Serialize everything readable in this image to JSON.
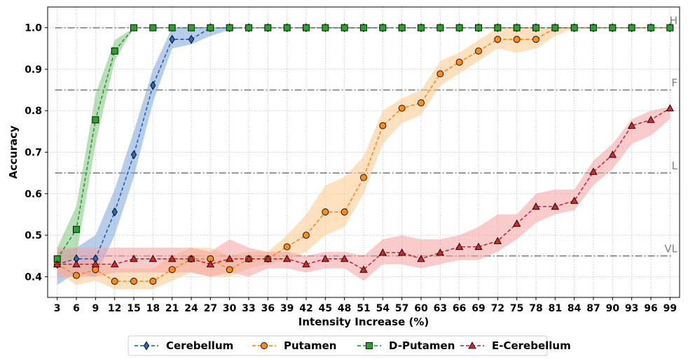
{
  "chart_data": {
    "type": "line",
    "xlabel": "Intensity Increase (%)",
    "ylabel": "Accuracy",
    "x": [
      3,
      6,
      9,
      12,
      15,
      18,
      21,
      24,
      27,
      30,
      33,
      36,
      39,
      42,
      45,
      48,
      51,
      54,
      57,
      60,
      63,
      66,
      69,
      72,
      75,
      78,
      81,
      84,
      87,
      90,
      93,
      96,
      99
    ],
    "xlim": [
      1.5,
      100.5
    ],
    "ylim": [
      0.35,
      1.05
    ],
    "yticks": [
      0.4,
      0.5,
      0.6,
      0.7,
      0.8,
      0.9,
      1.0
    ],
    "ytick_labels": [
      "0.4",
      "0.5",
      "0.6",
      "0.7",
      "0.8",
      "0.9",
      "1.0"
    ],
    "grid": true,
    "legend_position": "bottom-center",
    "thresholds": [
      {
        "label": "H",
        "value": 1.0
      },
      {
        "label": "F",
        "value": 0.85
      },
      {
        "label": "L",
        "value": 0.65
      },
      {
        "label": "VL",
        "value": 0.45
      }
    ],
    "series": [
      {
        "name": "Cerebellum",
        "color": "#1f4e9e",
        "band_color": "#7aa6d9",
        "marker": "diamond",
        "values": [
          0.43,
          0.443,
          0.443,
          0.556,
          0.694,
          0.861,
          0.972,
          0.972,
          1.0,
          1.0,
          1.0,
          1.0,
          1.0,
          1.0,
          1.0,
          1.0,
          1.0,
          1.0,
          1.0,
          1.0,
          1.0,
          1.0,
          1.0,
          1.0,
          1.0,
          1.0,
          1.0,
          1.0,
          1.0,
          1.0,
          1.0,
          1.0,
          1.0
        ],
        "lower": [
          0.38,
          0.41,
          0.4,
          0.5,
          0.64,
          0.82,
          0.95,
          0.96,
          0.98,
          0.995,
          1.0,
          1.0,
          1.0,
          1.0,
          1.0,
          1.0,
          1.0,
          1.0,
          1.0,
          1.0,
          1.0,
          1.0,
          1.0,
          1.0,
          1.0,
          1.0,
          1.0,
          1.0,
          1.0,
          1.0,
          1.0,
          1.0,
          1.0
        ],
        "upper": [
          0.46,
          0.47,
          0.5,
          0.61,
          0.75,
          0.9,
          1.0,
          1.0,
          1.0,
          1.0,
          1.0,
          1.0,
          1.0,
          1.0,
          1.0,
          1.0,
          1.0,
          1.0,
          1.0,
          1.0,
          1.0,
          1.0,
          1.0,
          1.0,
          1.0,
          1.0,
          1.0,
          1.0,
          1.0,
          1.0,
          1.0,
          1.0,
          1.0
        ]
      },
      {
        "name": "Putamen",
        "color": "#ff7f0e",
        "band_color": "#ffc68a",
        "marker": "circle",
        "values": [
          0.43,
          0.403,
          0.417,
          0.389,
          0.389,
          0.389,
          0.417,
          0.443,
          0.443,
          0.417,
          0.443,
          0.443,
          0.472,
          0.5,
          0.556,
          0.556,
          0.639,
          0.764,
          0.806,
          0.819,
          0.889,
          0.917,
          0.944,
          0.972,
          0.972,
          0.972,
          1.0,
          1.0,
          1.0,
          1.0,
          1.0,
          1.0,
          1.0
        ],
        "lower": [
          0.41,
          0.38,
          0.39,
          0.37,
          0.37,
          0.37,
          0.39,
          0.41,
          0.4,
          0.4,
          0.42,
          0.43,
          0.44,
          0.46,
          0.5,
          0.52,
          0.6,
          0.72,
          0.77,
          0.79,
          0.86,
          0.89,
          0.92,
          0.95,
          0.94,
          0.95,
          0.98,
          1.0,
          1.0,
          1.0,
          1.0,
          1.0,
          1.0
        ],
        "upper": [
          0.45,
          0.43,
          0.44,
          0.42,
          0.42,
          0.42,
          0.45,
          0.47,
          0.47,
          0.45,
          0.46,
          0.46,
          0.5,
          0.55,
          0.62,
          0.64,
          0.69,
          0.8,
          0.83,
          0.85,
          0.92,
          0.94,
          0.97,
          1.0,
          1.0,
          1.0,
          1.0,
          1.0,
          1.0,
          1.0,
          1.0,
          1.0,
          1.0
        ]
      },
      {
        "name": "D-Putamen",
        "color": "#1e8a2e",
        "band_color": "#7fc47f",
        "marker": "square",
        "values": [
          0.443,
          0.514,
          0.778,
          0.944,
          1.0,
          1.0,
          1.0,
          1.0,
          1.0,
          1.0,
          1.0,
          1.0,
          1.0,
          1.0,
          1.0,
          1.0,
          1.0,
          1.0,
          1.0,
          1.0,
          1.0,
          1.0,
          1.0,
          1.0,
          1.0,
          1.0,
          1.0,
          1.0,
          1.0,
          1.0,
          1.0,
          1.0,
          1.0
        ],
        "lower": [
          0.42,
          0.45,
          0.72,
          0.92,
          1.0,
          1.0,
          1.0,
          1.0,
          1.0,
          1.0,
          1.0,
          1.0,
          1.0,
          1.0,
          1.0,
          1.0,
          1.0,
          1.0,
          1.0,
          1.0,
          1.0,
          1.0,
          1.0,
          1.0,
          1.0,
          1.0,
          1.0,
          1.0,
          1.0,
          1.0,
          1.0,
          1.0,
          1.0
        ],
        "upper": [
          0.47,
          0.57,
          0.84,
          0.97,
          1.0,
          1.0,
          1.0,
          1.0,
          1.0,
          1.0,
          1.0,
          1.0,
          1.0,
          1.0,
          1.0,
          1.0,
          1.0,
          1.0,
          1.0,
          1.0,
          1.0,
          1.0,
          1.0,
          1.0,
          1.0,
          1.0,
          1.0,
          1.0,
          1.0,
          1.0,
          1.0,
          1.0,
          1.0
        ]
      },
      {
        "name": "E-Cerebellum",
        "color": "#c8102e",
        "band_color": "#f4a0a0",
        "marker": "triangle",
        "values": [
          0.43,
          0.43,
          0.43,
          0.43,
          0.443,
          0.443,
          0.443,
          0.443,
          0.43,
          0.443,
          0.443,
          0.443,
          0.443,
          0.43,
          0.443,
          0.443,
          0.417,
          0.458,
          0.458,
          0.443,
          0.458,
          0.472,
          0.472,
          0.486,
          0.528,
          0.569,
          0.569,
          0.583,
          0.653,
          0.694,
          0.764,
          0.778,
          0.806
        ],
        "lower": [
          0.4,
          0.4,
          0.4,
          0.41,
          0.41,
          0.41,
          0.41,
          0.41,
          0.4,
          0.41,
          0.4,
          0.42,
          0.42,
          0.41,
          0.42,
          0.42,
          0.39,
          0.43,
          0.43,
          0.42,
          0.43,
          0.44,
          0.44,
          0.46,
          0.49,
          0.53,
          0.55,
          0.56,
          0.62,
          0.66,
          0.72,
          0.74,
          0.78
        ],
        "upper": [
          0.47,
          0.47,
          0.47,
          0.47,
          0.47,
          0.47,
          0.47,
          0.47,
          0.46,
          0.49,
          0.47,
          0.46,
          0.46,
          0.45,
          0.46,
          0.46,
          0.45,
          0.49,
          0.5,
          0.49,
          0.49,
          0.5,
          0.52,
          0.55,
          0.55,
          0.6,
          0.61,
          0.61,
          0.68,
          0.72,
          0.78,
          0.8,
          0.81
        ]
      }
    ]
  }
}
